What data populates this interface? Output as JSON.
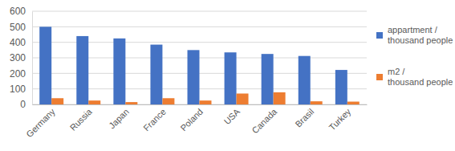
{
  "chart_data": {
    "type": "bar",
    "categories": [
      "Germany",
      "Russia",
      "Japan",
      "France",
      "Poland",
      "USA",
      "Canada",
      "Brasil",
      "Turkey"
    ],
    "series": [
      {
        "name": "appartment / thousand people",
        "color": "#4472c4",
        "values": [
          500,
          440,
          425,
          385,
          350,
          335,
          325,
          312,
          222
        ]
      },
      {
        "name": "m2 / thousand people",
        "color": "#ed7d31",
        "values": [
          40,
          25,
          15,
          40,
          25,
          70,
          78,
          20,
          18
        ]
      }
    ],
    "ylim": [
      0,
      600
    ],
    "yticks": [
      0,
      100,
      200,
      300,
      400,
      500,
      600
    ],
    "grid": true,
    "legend": "right"
  }
}
